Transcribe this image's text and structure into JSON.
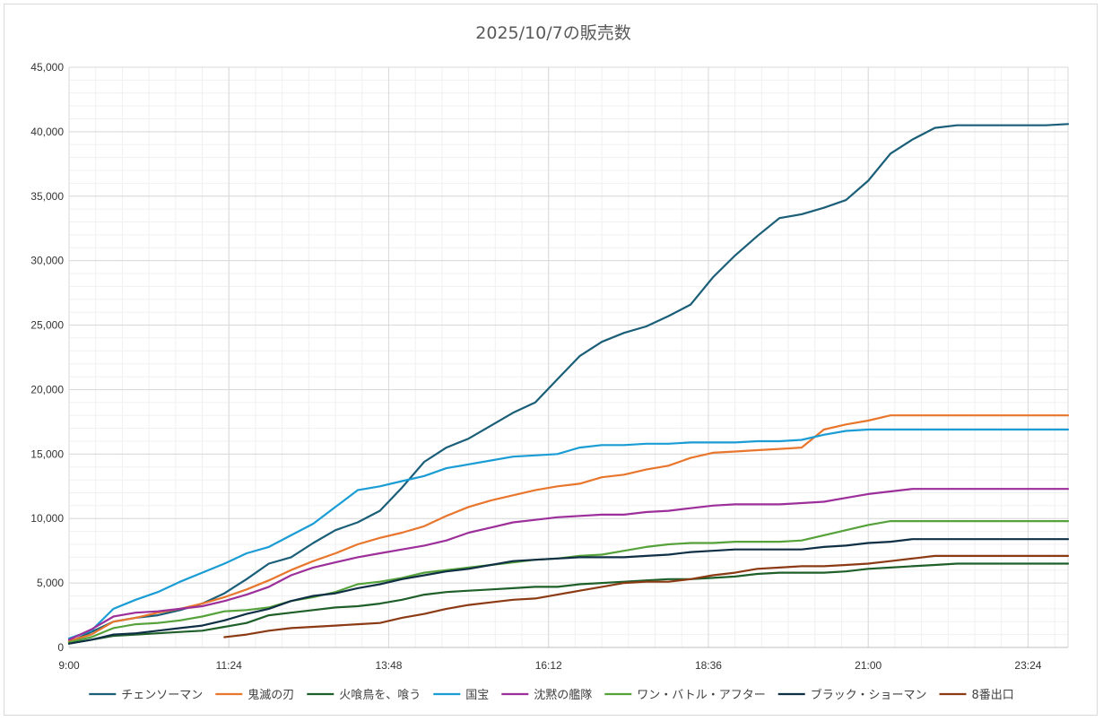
{
  "chart_data": {
    "type": "line",
    "title": "2025/10/7の販売数",
    "xlabel": "",
    "ylabel": "",
    "ylim": [
      0,
      45000
    ],
    "yticks": [
      0,
      5000,
      10000,
      15000,
      20000,
      25000,
      30000,
      35000,
      40000,
      45000
    ],
    "ytick_labels": [
      "0",
      "5,000",
      "10,000",
      "15,000",
      "20,000",
      "25,000",
      "30,000",
      "35,000",
      "40,000",
      "45,000"
    ],
    "xlim": [
      "9:00",
      "24:00"
    ],
    "xticks": [
      "9:00",
      "11:24",
      "13:48",
      "16:12",
      "18:36",
      "21:00",
      "23:24"
    ],
    "grid": true,
    "legend_position": "bottom",
    "x": [
      "9:00",
      "9:20",
      "9:40",
      "10:00",
      "10:20",
      "10:40",
      "11:00",
      "11:20",
      "11:40",
      "12:00",
      "12:20",
      "12:40",
      "13:00",
      "13:20",
      "13:40",
      "14:00",
      "14:20",
      "14:40",
      "15:00",
      "15:20",
      "15:40",
      "16:00",
      "16:20",
      "16:40",
      "17:00",
      "17:20",
      "17:40",
      "18:00",
      "18:20",
      "18:40",
      "19:00",
      "19:20",
      "19:40",
      "20:00",
      "20:20",
      "20:40",
      "21:00",
      "21:20",
      "21:40",
      "22:00",
      "22:20",
      "22:40",
      "23:00",
      "23:20",
      "23:40",
      "24:00"
    ],
    "series": [
      {
        "name": "チェンソーマン",
        "color": "#1a5e78",
        "values": [
          400,
          1200,
          2000,
          2300,
          2500,
          2900,
          3400,
          4200,
          5300,
          6500,
          7000,
          8100,
          9100,
          9700,
          10600,
          12400,
          14400,
          15500,
          16200,
          17200,
          18200,
          19000,
          20800,
          22600,
          23700,
          24400,
          24900,
          25700,
          26600,
          28700,
          30400,
          31900,
          33300,
          33600,
          34100,
          34700,
          36200,
          38300,
          39400,
          40300,
          40500,
          40500,
          40500,
          40500,
          40500,
          40600
        ]
      },
      {
        "name": "鬼滅の刃",
        "color": "#e8762d",
        "values": [
          500,
          1000,
          2000,
          2300,
          2700,
          3000,
          3400,
          3900,
          4500,
          5200,
          6000,
          6700,
          7300,
          8000,
          8500,
          8900,
          9400,
          10200,
          10900,
          11400,
          11800,
          12200,
          12500,
          12700,
          13200,
          13400,
          13800,
          14100,
          14700,
          15100,
          15200,
          15300,
          15400,
          15500,
          16900,
          17300,
          17600,
          18000,
          18000,
          18000,
          18000,
          18000,
          18000,
          18000,
          18000,
          18000
        ]
      },
      {
        "name": "火喰鳥を、喰う",
        "color": "#1f5f2a",
        "values": [
          300,
          600,
          900,
          1000,
          1100,
          1200,
          1300,
          1600,
          1900,
          2500,
          2700,
          2900,
          3100,
          3200,
          3400,
          3700,
          4100,
          4300,
          4400,
          4500,
          4600,
          4700,
          4700,
          4900,
          5000,
          5100,
          5200,
          5300,
          5300,
          5400,
          5500,
          5700,
          5800,
          5800,
          5800,
          5900,
          6100,
          6200,
          6300,
          6400,
          6500,
          6500,
          6500,
          6500,
          6500,
          6500
        ]
      },
      {
        "name": "国宝",
        "color": "#1a9cd4",
        "values": [
          700,
          1300,
          3000,
          3700,
          4300,
          5100,
          5800,
          6500,
          7300,
          7800,
          8700,
          9600,
          10900,
          12200,
          12500,
          12900,
          13300,
          13900,
          14200,
          14500,
          14800,
          14900,
          15000,
          15500,
          15700,
          15700,
          15800,
          15800,
          15900,
          15900,
          15900,
          16000,
          16000,
          16100,
          16500,
          16800,
          16900,
          16900,
          16900,
          16900,
          16900,
          16900,
          16900,
          16900,
          16900,
          16900
        ]
      },
      {
        "name": "沈黙の艦隊",
        "color": "#9c2f9a",
        "values": [
          600,
          1400,
          2400,
          2700,
          2800,
          3000,
          3200,
          3600,
          4100,
          4700,
          5600,
          6200,
          6600,
          7000,
          7300,
          7600,
          7900,
          8300,
          8900,
          9300,
          9700,
          9900,
          10100,
          10200,
          10300,
          10300,
          10500,
          10600,
          10800,
          11000,
          11100,
          11100,
          11100,
          11200,
          11300,
          11600,
          11900,
          12100,
          12300,
          12300,
          12300,
          12300,
          12300,
          12300,
          12300,
          12300
        ]
      },
      {
        "name": "ワン・バトル・アフター",
        "color": "#55a23a",
        "values": [
          400,
          800,
          1500,
          1800,
          1900,
          2100,
          2400,
          2800,
          2900,
          3100,
          3600,
          3900,
          4300,
          4900,
          5100,
          5400,
          5800,
          6000,
          6200,
          6400,
          6600,
          6800,
          6900,
          7100,
          7200,
          7500,
          7800,
          8000,
          8100,
          8100,
          8200,
          8200,
          8200,
          8300,
          8700,
          9100,
          9500,
          9800,
          9800,
          9800,
          9800,
          9800,
          9800,
          9800,
          9800,
          9800
        ]
      },
      {
        "name": "ブラック・ショーマン",
        "color": "#0f2f45",
        "values": [
          300,
          600,
          1000,
          1100,
          1300,
          1500,
          1700,
          2100,
          2600,
          3000,
          3600,
          4000,
          4200,
          4600,
          4900,
          5300,
          5600,
          5900,
          6100,
          6400,
          6700,
          6800,
          6900,
          7000,
          7000,
          7000,
          7100,
          7200,
          7400,
          7500,
          7600,
          7600,
          7600,
          7600,
          7800,
          7900,
          8100,
          8200,
          8400,
          8400,
          8400,
          8400,
          8400,
          8400,
          8400,
          8400
        ]
      },
      {
        "name": "8番出口",
        "color": "#8b3a14",
        "values": [
          null,
          null,
          null,
          null,
          null,
          null,
          null,
          800,
          1000,
          1300,
          1500,
          1600,
          1700,
          1800,
          1900,
          2300,
          2600,
          3000,
          3300,
          3500,
          3700,
          3800,
          4100,
          4400,
          4700,
          5000,
          5100,
          5100,
          5300,
          5600,
          5800,
          6100,
          6200,
          6300,
          6300,
          6400,
          6500,
          6700,
          6900,
          7100,
          7100,
          7100,
          7100,
          7100,
          7100,
          7100
        ]
      }
    ]
  }
}
